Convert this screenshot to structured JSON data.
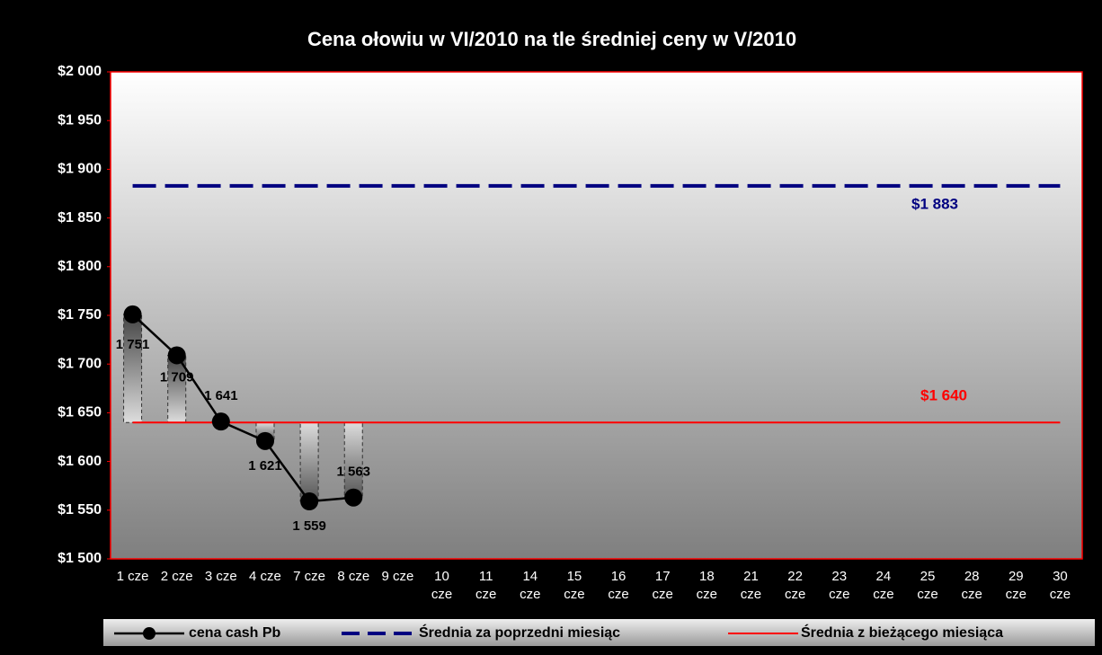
{
  "chart_data": {
    "type": "line",
    "title": "Cena ołowiu w VI/2010 na tle średniej ceny w V/2010",
    "categories": [
      "1 cze",
      "2 cze",
      "3 cze",
      "4 cze",
      "7 cze",
      "8 cze",
      "9 cze",
      "10 cze",
      "11 cze",
      "14 cze",
      "15 cze",
      "16 cze",
      "17 cze",
      "18 cze",
      "21 cze",
      "22 cze",
      "23 cze",
      "24 cze",
      "25 cze",
      "28 cze",
      "29 cze",
      "30 cze"
    ],
    "series": [
      {
        "name": "cena cash Pb",
        "color": "#000000",
        "values": [
          1751,
          1709,
          1641,
          1621,
          1559,
          1563,
          null,
          null,
          null,
          null,
          null,
          null,
          null,
          null,
          null,
          null,
          null,
          null,
          null,
          null,
          null,
          null
        ],
        "value_labels": [
          "1 751",
          "1 709",
          "1 641",
          "1 621",
          "1 559",
          "1 563",
          null,
          null,
          null,
          null,
          null,
          null,
          null,
          null,
          null,
          null,
          null,
          null,
          null,
          null,
          null,
          null
        ]
      },
      {
        "name": "Średnia za poprzedni miesiąc",
        "color": "#000080",
        "dashed": true,
        "values": [
          1883,
          1883,
          1883,
          1883,
          1883,
          1883,
          1883,
          1883,
          1883,
          1883,
          1883,
          1883,
          1883,
          1883,
          1883,
          1883,
          1883,
          1883,
          1883,
          1883,
          1883,
          1883
        ],
        "label": "$1 883"
      },
      {
        "name": "Średnia z bieżącego miesiąca",
        "color": "#ff0000",
        "values": [
          1640,
          1640,
          1640,
          1640,
          1640,
          1640,
          1640,
          1640,
          1640,
          1640,
          1640,
          1640,
          1640,
          1640,
          1640,
          1640,
          1640,
          1640,
          1640,
          1640,
          1640,
          1640
        ],
        "label": "$1 640"
      }
    ],
    "ylim": [
      1500,
      2000
    ],
    "yticks": [
      {
        "value": 1500,
        "label": "$1 500"
      },
      {
        "value": 1550,
        "label": "$1 550"
      },
      {
        "value": 1600,
        "label": "$1 600"
      },
      {
        "value": 1650,
        "label": "$1 650"
      },
      {
        "value": 1700,
        "label": "$1 700"
      },
      {
        "value": 1750,
        "label": "$1 750"
      },
      {
        "value": 1800,
        "label": "$1 800"
      },
      {
        "value": 1850,
        "label": "$1 850"
      },
      {
        "value": 1900,
        "label": "$1 900"
      },
      {
        "value": 1950,
        "label": "$1 950"
      },
      {
        "value": 2000,
        "label": "$2 000"
      }
    ],
    "legend": "bottom"
  }
}
